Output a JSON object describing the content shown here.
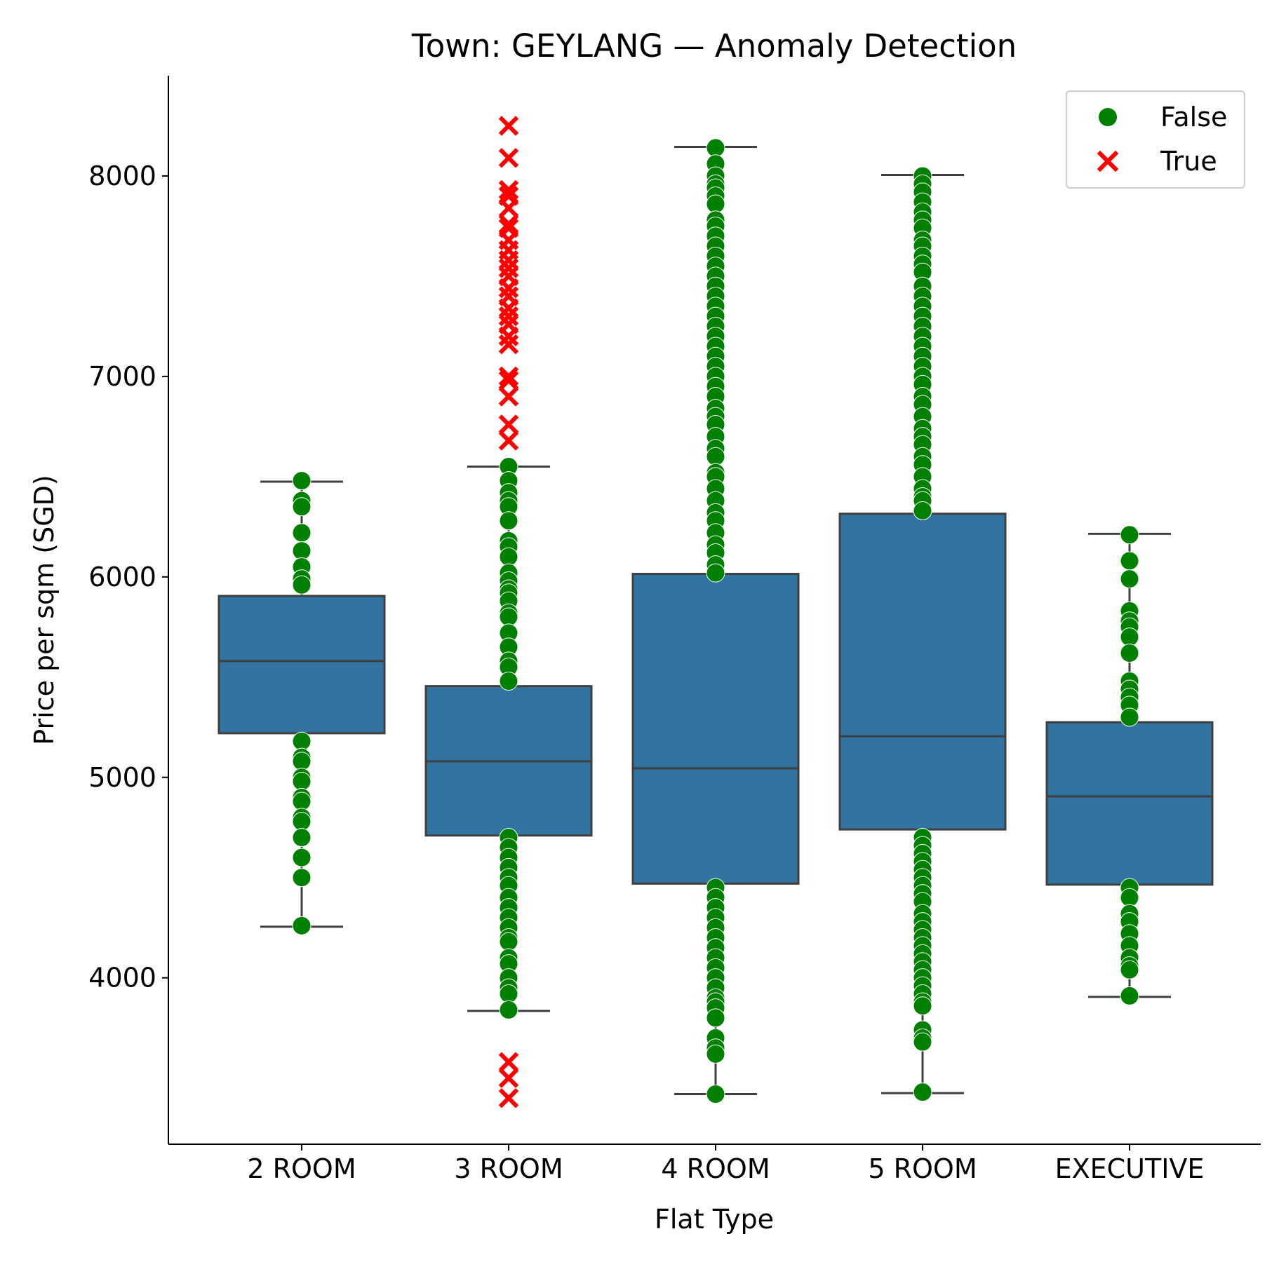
{
  "chart_data": {
    "type": "box",
    "title": "Town: GEYLANG — Anomaly Detection",
    "xlabel": "Flat Type",
    "ylabel": "Price per sqm (SGD)",
    "ylim": [
      3170,
      8500
    ],
    "yticks": [
      4000,
      5000,
      6000,
      7000,
      8000
    ],
    "categories": [
      "2 ROOM",
      "3 ROOM",
      "4 ROOM",
      "5 ROOM",
      "EXECUTIVE"
    ],
    "box_color": "#3274a1",
    "legend": {
      "placement": "top-right",
      "entries": [
        {
          "label": "False",
          "color": "#008000",
          "marker": "circle"
        },
        {
          "label": "True",
          "color": "#ff0000",
          "marker": "x"
        }
      ]
    },
    "boxes": [
      {
        "category": "2 ROOM",
        "whisker_low": 4255,
        "q1": 5220,
        "median": 5580,
        "q3": 5905,
        "whisker_high": 6475
      },
      {
        "category": "3 ROOM",
        "whisker_low": 3835,
        "q1": 4710,
        "median": 5080,
        "q3": 5455,
        "whisker_high": 6550
      },
      {
        "category": "4 ROOM",
        "whisker_low": 3420,
        "q1": 4470,
        "median": 5045,
        "q3": 6015,
        "whisker_high": 8145
      },
      {
        "category": "5 ROOM",
        "whisker_low": 3425,
        "q1": 4740,
        "median": 5205,
        "q3": 6315,
        "whisker_high": 8005
      },
      {
        "category": "EXECUTIVE",
        "whisker_low": 3905,
        "q1": 4465,
        "median": 4905,
        "q3": 5275,
        "whisker_high": 6215
      }
    ],
    "points": [
      {
        "category": "2 ROOM",
        "anomaly": false,
        "y": [
          6480,
          6380,
          6350,
          6220,
          6130,
          6050,
          5990,
          5960,
          5180,
          5100,
          5080,
          5000,
          4980,
          4900,
          4880,
          4800,
          4780,
          4700,
          4600,
          4500,
          4260
        ]
      },
      {
        "category": "3 ROOM",
        "anomaly": false,
        "y": [
          6550,
          6480,
          6420,
          6380,
          6350,
          6280,
          6180,
          6150,
          6100,
          6020,
          5980,
          5940,
          5920,
          5880,
          5820,
          5800,
          5720,
          5650,
          5580,
          5550,
          5480,
          4700,
          4650,
          4600,
          4550,
          4500,
          4460,
          4400,
          4350,
          4300,
          4250,
          4200,
          4180,
          4100,
          4070,
          4000,
          3950,
          3920,
          3840
        ]
      },
      {
        "category": "3 ROOM",
        "anomaly": true,
        "y": [
          8250,
          8090,
          7930,
          7900,
          7840,
          7760,
          7740,
          7680,
          7630,
          7580,
          7540,
          7500,
          7440,
          7400,
          7340,
          7300,
          7260,
          7200,
          7160,
          7000,
          6980,
          6900,
          6760,
          6680,
          3580,
          3500,
          3400
        ]
      },
      {
        "category": "4 ROOM",
        "anomaly": false,
        "y": [
          8140,
          8060,
          8000,
          7960,
          7940,
          7900,
          7860,
          7780,
          7750,
          7700,
          7650,
          7600,
          7550,
          7500,
          7450,
          7400,
          7350,
          7300,
          7250,
          7200,
          7150,
          7100,
          7050,
          7000,
          6950,
          6900,
          6840,
          6800,
          6760,
          6700,
          6640,
          6600,
          6520,
          6500,
          6440,
          6380,
          6320,
          6280,
          6220,
          6160,
          6120,
          6060,
          6020,
          4450,
          4400,
          4350,
          4300,
          4250,
          4200,
          4150,
          4100,
          4050,
          4000,
          3950,
          3900,
          3880,
          3850,
          3800,
          3700,
          3650,
          3620,
          3420
        ]
      },
      {
        "category": "5 ROOM",
        "anomaly": false,
        "y": [
          8000,
          7960,
          7920,
          7870,
          7820,
          7780,
          7740,
          7680,
          7650,
          7600,
          7560,
          7520,
          7450,
          7400,
          7350,
          7300,
          7250,
          7200,
          7150,
          7100,
          7050,
          7000,
          6960,
          6900,
          6860,
          6800,
          6740,
          6700,
          6660,
          6600,
          6560,
          6500,
          6440,
          6400,
          6380,
          6330,
          4700,
          4660,
          4620,
          4580,
          4540,
          4500,
          4460,
          4420,
          4380,
          4320,
          4280,
          4240,
          4200,
          4160,
          4120,
          4080,
          4040,
          4000,
          3960,
          3920,
          3880,
          3860,
          3740,
          3700,
          3680,
          3430
        ]
      },
      {
        "category": "EXECUTIVE",
        "anomaly": false,
        "y": [
          6210,
          6080,
          5990,
          5830,
          5780,
          5750,
          5700,
          5620,
          5480,
          5440,
          5400,
          5360,
          5300,
          4450,
          4400,
          4320,
          4280,
          4220,
          4160,
          4100,
          4060,
          4040,
          3910
        ]
      }
    ]
  }
}
